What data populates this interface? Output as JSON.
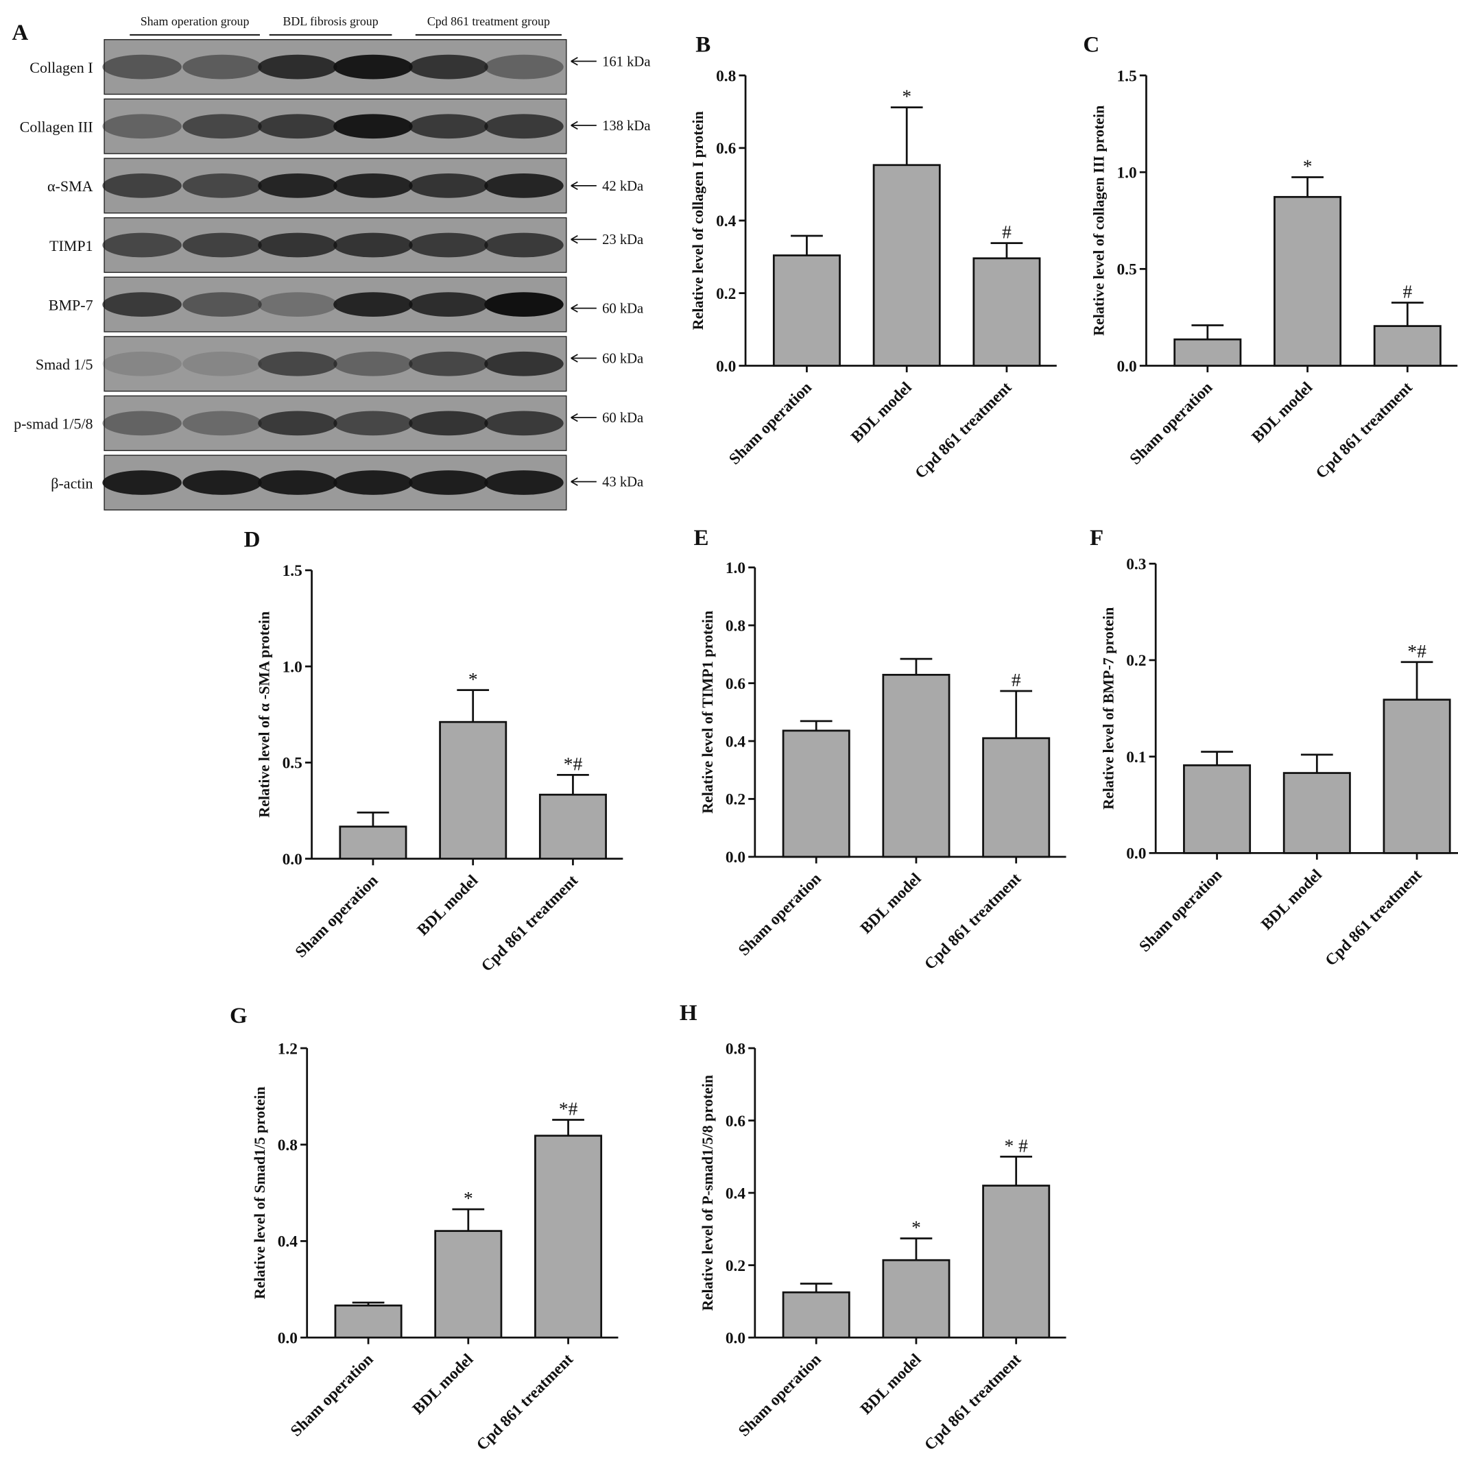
{
  "blot": {
    "panel": "A",
    "groups": [
      "Sham operation group",
      "BDL fibrosis group",
      "Cpd 861 treatment group"
    ],
    "rows": [
      {
        "label": "Collagen I",
        "size": "161 kDa"
      },
      {
        "label": "Collagen III",
        "size": "138 kDa"
      },
      {
        "label": "α-SMA",
        "size": "42 kDa"
      },
      {
        "label": "TIMP1",
        "size": "23 kDa"
      },
      {
        "label": "BMP-7",
        "size": "60 kDa"
      },
      {
        "label": "Smad 1/5",
        "size": "60 kDa"
      },
      {
        "label": "p-smad 1/5/8",
        "size": "60 kDa"
      },
      {
        "label": "β-actin",
        "size": "43 kDa"
      }
    ]
  },
  "chart_data": [
    {
      "type": "bar",
      "panel": "B",
      "ylabel": "Relative level of collagen I protein",
      "categories": [
        "Sham operation",
        "BDL model",
        "Cpd 861 treatment"
      ],
      "values": [
        0.304,
        0.553,
        0.296
      ],
      "errors": [
        0.054,
        0.159,
        0.042
      ],
      "annotations": [
        null,
        "*",
        "#"
      ],
      "color": "#a9a9a9",
      "ylim": [
        0,
        0.8
      ],
      "yticks": [
        {
          "value": 0,
          "label": "0.0"
        },
        0.2,
        0.4,
        0.6,
        0.8
      ]
    },
    {
      "type": "bar",
      "panel": "C",
      "ylabel": "Relative level of collagen III protein",
      "categories": [
        "Sham operation",
        "BDL model",
        "Cpd 861 treatment"
      ],
      "values": [
        0.136,
        0.872,
        0.205
      ],
      "errors": [
        0.073,
        0.102,
        0.121
      ],
      "annotations": [
        null,
        "*",
        "#"
      ],
      "color": "#a9a9a9",
      "ylim": [
        0,
        1.5
      ],
      "yticks": [
        {
          "value": 0,
          "label": "0.0"
        },
        0.5,
        {
          "value": 1,
          "label": "1.0"
        },
        1.5
      ]
    },
    {
      "type": "bar",
      "panel": "D",
      "ylabel": "Relative level of α -SMA protein",
      "categories": [
        "Sham operation",
        "BDL model",
        "Cpd 861 treatment"
      ],
      "values": [
        0.167,
        0.711,
        0.333
      ],
      "errors": [
        0.073,
        0.166,
        0.103
      ],
      "annotations": [
        null,
        "*",
        "*#"
      ],
      "color": "#a9a9a9",
      "ylim": [
        0,
        1.5
      ],
      "yticks": [
        {
          "value": 0,
          "label": "0.0"
        },
        0.5,
        {
          "value": 1,
          "label": "1.0"
        },
        1.5
      ]
    },
    {
      "type": "bar",
      "panel": "E",
      "ylabel": "Relative level of TIMP1 protein",
      "categories": [
        "Sham operation",
        "BDL model",
        "Cpd 861 treatment"
      ],
      "values": [
        0.436,
        0.629,
        0.41
      ],
      "errors": [
        0.033,
        0.055,
        0.163
      ],
      "annotations": [
        null,
        null,
        "#"
      ],
      "color": "#a9a9a9",
      "ylim": [
        0,
        1
      ],
      "yticks": [
        {
          "value": 0,
          "label": "0.0"
        },
        0.2,
        0.4,
        0.6,
        0.8,
        {
          "value": 1,
          "label": "1.0"
        }
      ]
    },
    {
      "type": "bar",
      "panel": "F",
      "ylabel": "Relative level of BMP-7 protein",
      "categories": [
        "Sham operation",
        "BDL model",
        "Cpd 861 treatment"
      ],
      "values": [
        0.091,
        0.083,
        0.159
      ],
      "errors": [
        0.014,
        0.019,
        0.039
      ],
      "annotations": [
        null,
        null,
        "*#"
      ],
      "color": "#a9a9a9",
      "ylim": [
        0,
        0.3
      ],
      "yticks": [
        {
          "value": 0,
          "label": "0.0"
        },
        0.1,
        0.2,
        0.3
      ]
    },
    {
      "type": "bar",
      "panel": "G",
      "ylabel": "Relative level of Smad1/5 protein",
      "categories": [
        "Sham operation",
        "BDL model",
        "Cpd 861 treatment"
      ],
      "values": [
        0.133,
        0.442,
        0.837
      ],
      "errors": [
        0.012,
        0.09,
        0.066
      ],
      "annotations": [
        null,
        "*",
        "*#"
      ],
      "color": "#a9a9a9",
      "ylim": [
        0,
        1.2
      ],
      "yticks": [
        {
          "value": 0,
          "label": "0.0"
        },
        0.4,
        0.8,
        1.2
      ]
    },
    {
      "type": "bar",
      "panel": "H",
      "ylabel": "Relative level of P-smad1/5/8 protein",
      "categories": [
        "Sham operation",
        "BDL model",
        "Cpd 861 treatment"
      ],
      "values": [
        0.125,
        0.214,
        0.42
      ],
      "errors": [
        0.024,
        0.06,
        0.08
      ],
      "annotations": [
        null,
        "*",
        "* #"
      ],
      "color": "#a9a9a9",
      "ylim": [
        0,
        0.8
      ],
      "yticks": [
        {
          "value": 0,
          "label": "0.0"
        },
        0.2,
        0.4,
        0.6,
        0.8
      ]
    }
  ]
}
